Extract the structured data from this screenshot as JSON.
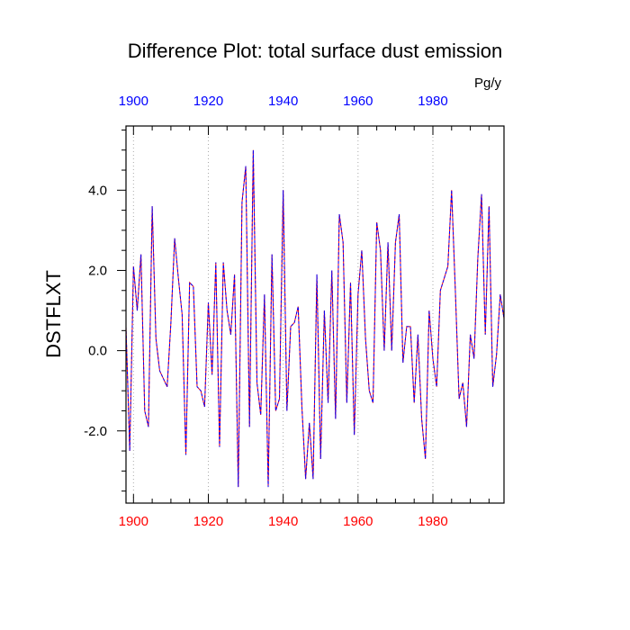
{
  "chart_data": {
    "type": "line",
    "title": "Difference Plot: total surface dust emission",
    "units": "Pg/y",
    "ylabel": "DSTFLXT",
    "xlabel": "",
    "xlim": [
      1898,
      1999
    ],
    "ylim": [
      -3.8,
      5.6
    ],
    "x_ticks": [
      1900,
      1920,
      1940,
      1960,
      1980
    ],
    "x_tick_labels": [
      "1900",
      "1920",
      "1940",
      "1960",
      "1980"
    ],
    "y_ticks": [
      -2,
      0,
      2,
      4
    ],
    "y_tick_labels": [
      "-2.0",
      "0.0",
      "2.0",
      "4.0"
    ],
    "x_minor_step": 5,
    "y_minor_step": 0.5,
    "grid": "vertical dotted at major x ticks",
    "colors": {
      "bottom_axis_labels": "#ff0000",
      "top_axis_labels": "#0000ff",
      "series_line_a": "#ff0000",
      "series_line_b": "#0000ff",
      "grid": "#aaaaaa"
    },
    "x": [
      1898,
      1899,
      1900,
      1901,
      1902,
      1903,
      1904,
      1905,
      1906,
      1907,
      1908,
      1909,
      1910,
      1911,
      1912,
      1913,
      1914,
      1915,
      1916,
      1917,
      1918,
      1919,
      1920,
      1921,
      1922,
      1923,
      1924,
      1925,
      1926,
      1927,
      1928,
      1929,
      1930,
      1931,
      1932,
      1933,
      1934,
      1935,
      1936,
      1937,
      1938,
      1939,
      1940,
      1941,
      1942,
      1943,
      1944,
      1945,
      1946,
      1947,
      1948,
      1949,
      1950,
      1951,
      1952,
      1953,
      1954,
      1955,
      1956,
      1957,
      1958,
      1959,
      1960,
      1961,
      1962,
      1963,
      1964,
      1965,
      1966,
      1967,
      1968,
      1969,
      1970,
      1971,
      1972,
      1973,
      1974,
      1975,
      1976,
      1977,
      1978,
      1979,
      1980,
      1981,
      1982,
      1983,
      1984,
      1985,
      1986,
      1987,
      1988,
      1989,
      1990,
      1991,
      1992,
      1993,
      1994,
      1995,
      1996,
      1997,
      1998,
      1999
    ],
    "series": [
      {
        "values": [
          0.6,
          -2.5,
          2.1,
          1.0,
          2.4,
          -1.5,
          -1.9,
          3.6,
          0.3,
          -0.5,
          -0.7,
          -0.9,
          0.7,
          2.8,
          1.8,
          0.9,
          -2.6,
          1.7,
          1.6,
          -0.9,
          -1.0,
          -1.4,
          1.2,
          -0.6,
          2.2,
          -2.4,
          2.2,
          1.0,
          0.4,
          1.9,
          -3.4,
          3.7,
          4.6,
          -1.9,
          5.0,
          -0.8,
          -1.6,
          1.4,
          -3.4,
          2.4,
          -1.5,
          -1.2,
          4.0,
          -1.5,
          0.6,
          0.7,
          1.1,
          -1.4,
          -3.2,
          -1.8,
          -3.2,
          1.9,
          -2.7,
          1.0,
          -1.3,
          2.0,
          -1.7,
          3.4,
          2.7,
          -1.3,
          1.7,
          -2.1,
          1.4,
          2.5,
          0.3,
          -1.0,
          -1.3,
          3.2,
          2.5,
          0.0,
          2.7,
          0.0,
          2.7,
          3.4,
          -0.3,
          0.6,
          0.6,
          -1.3,
          0.4,
          -1.7,
          -2.7,
          1.0,
          -0.2,
          -0.9,
          1.5,
          1.8,
          2.1,
          4.0,
          1.5,
          -1.2,
          -0.8,
          -1.9,
          0.4,
          -0.2,
          2.3,
          3.9,
          0.4,
          3.6,
          -0.9,
          -0.1,
          1.4,
          0.8
        ]
      }
    ]
  }
}
